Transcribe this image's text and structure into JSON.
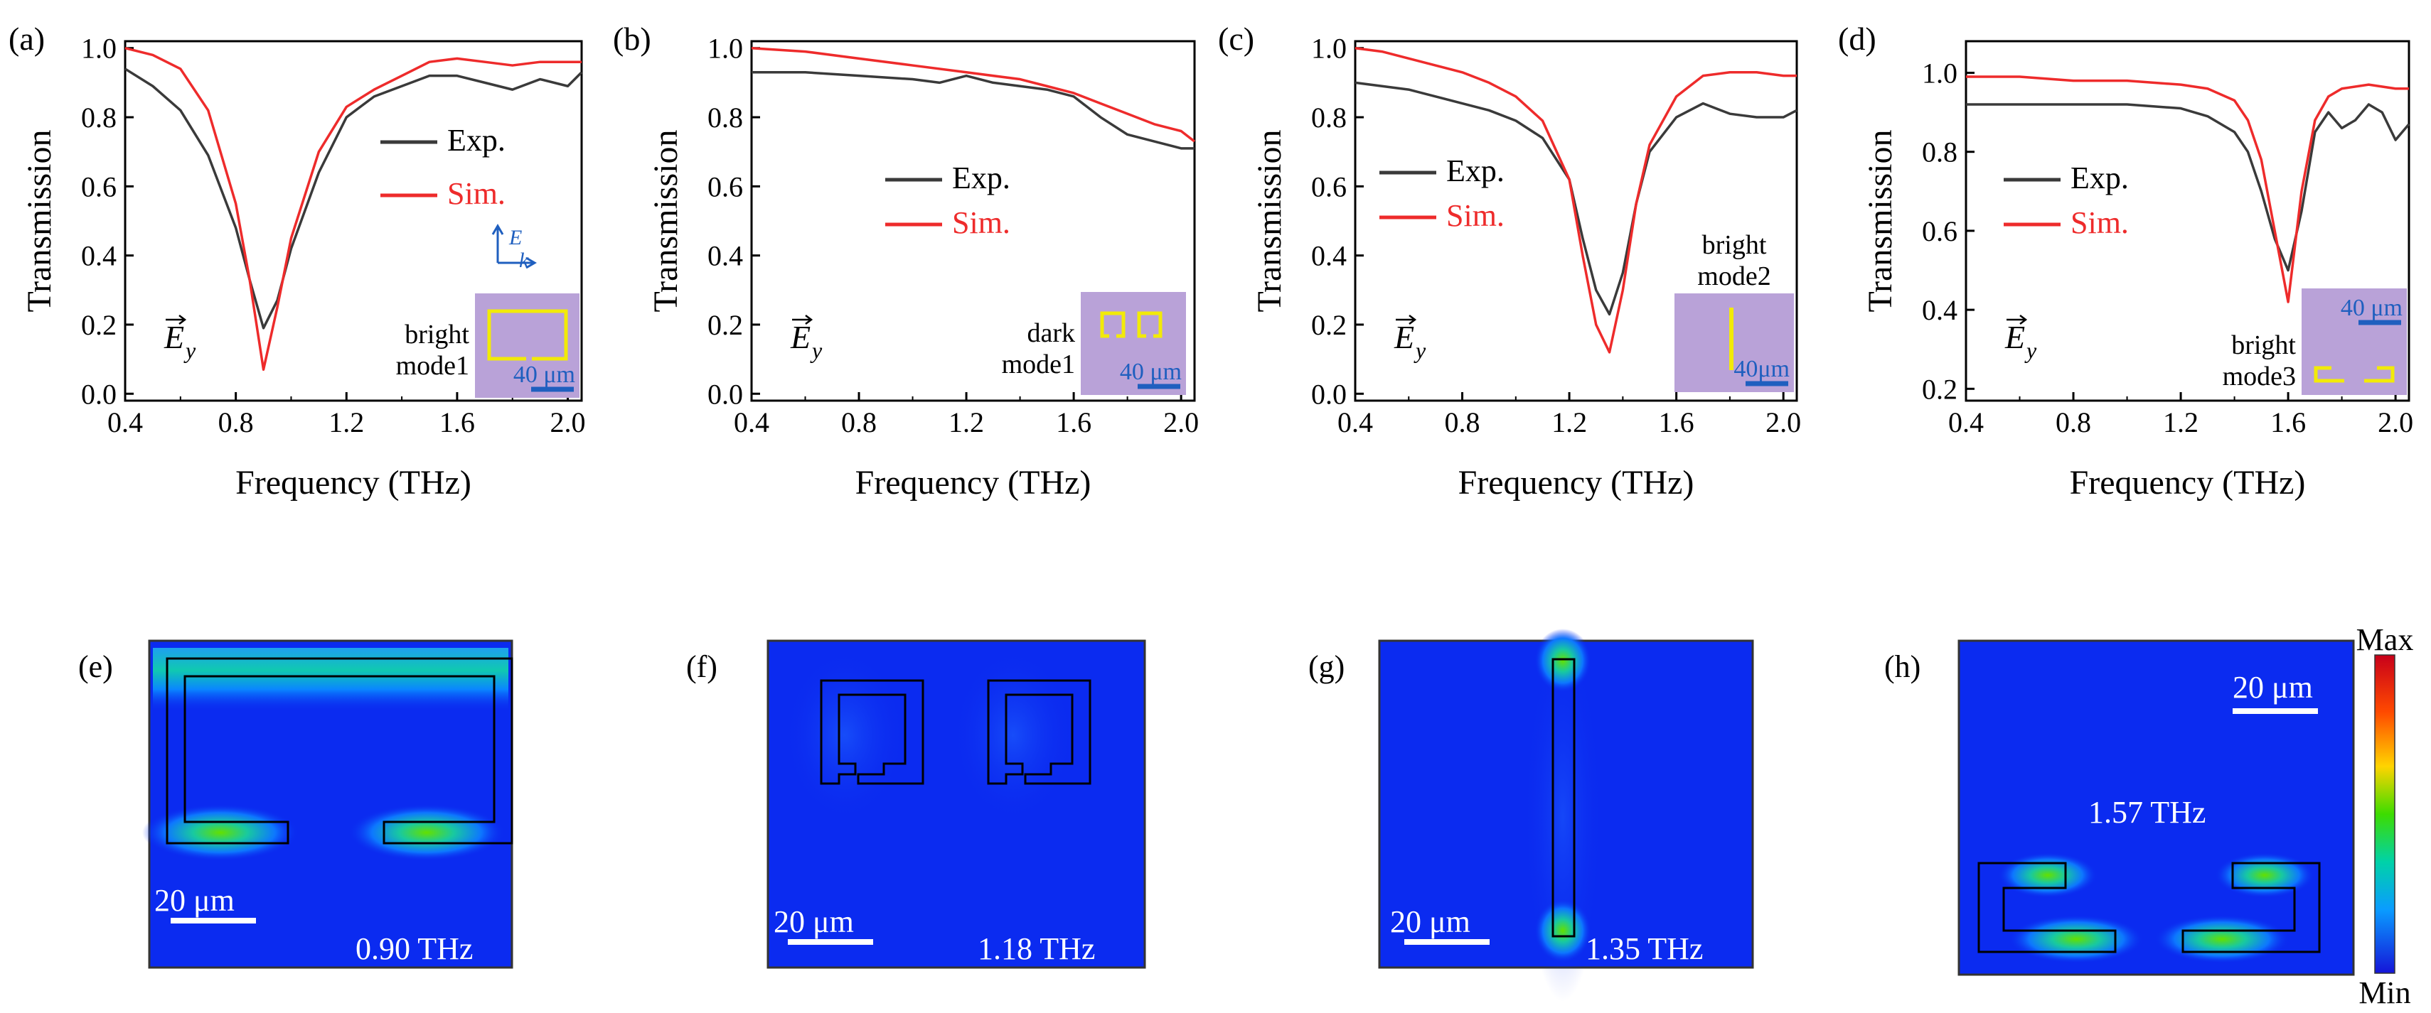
{
  "colors": {
    "exp": "#3a3a3a",
    "sim": "#ee2b2b",
    "inset_bg": "#b9a2d8",
    "inset_shape": "#f2ea08",
    "scale_blue": "#1f5fbf",
    "field_bg": "#0b2bf0"
  },
  "chart_data": [
    {
      "type": "line",
      "panel": "(a)",
      "xlabel": "Frequency (THz)",
      "ylabel": "Transmission",
      "xlim": [
        0.4,
        2.05
      ],
      "ylim": [
        -0.02,
        1.02
      ],
      "xticks": [
        "0.4",
        "0.8",
        "1.2",
        "1.6",
        "2.0"
      ],
      "yticks": [
        "0.0",
        "0.2",
        "0.4",
        "0.6",
        "0.8",
        "1.0"
      ],
      "ytick_values": [
        0.0,
        0.2,
        0.4,
        0.6,
        0.8,
        1.0
      ],
      "legend": [
        "Exp.",
        "Sim."
      ],
      "field_label": "E",
      "field_sub": "y",
      "inset_label": [
        "bright",
        "mode1"
      ],
      "inset_scale": "40 μm",
      "inset_shape": "bright1",
      "has_axes_icon": true,
      "series": [
        {
          "name": "Exp.",
          "x": [
            0.4,
            0.5,
            0.6,
            0.7,
            0.8,
            0.85,
            0.9,
            0.95,
            1.0,
            1.1,
            1.2,
            1.3,
            1.4,
            1.5,
            1.6,
            1.7,
            1.8,
            1.9,
            2.0,
            2.05
          ],
          "values": [
            0.94,
            0.89,
            0.82,
            0.69,
            0.48,
            0.33,
            0.19,
            0.27,
            0.42,
            0.64,
            0.8,
            0.86,
            0.89,
            0.92,
            0.92,
            0.9,
            0.88,
            0.91,
            0.89,
            0.93
          ]
        },
        {
          "name": "Sim.",
          "x": [
            0.4,
            0.5,
            0.6,
            0.7,
            0.8,
            0.85,
            0.9,
            0.95,
            1.0,
            1.1,
            1.2,
            1.3,
            1.4,
            1.5,
            1.6,
            1.7,
            1.8,
            1.9,
            2.0,
            2.05
          ],
          "values": [
            1.0,
            0.98,
            0.94,
            0.82,
            0.55,
            0.33,
            0.07,
            0.25,
            0.45,
            0.7,
            0.83,
            0.88,
            0.92,
            0.96,
            0.97,
            0.96,
            0.95,
            0.96,
            0.96,
            0.96
          ]
        }
      ]
    },
    {
      "type": "line",
      "panel": "(b)",
      "xlabel": "Frequency (THz)",
      "ylabel": "Transmission",
      "xlim": [
        0.4,
        2.05
      ],
      "ylim": [
        -0.02,
        1.02
      ],
      "xticks": [
        "0.4",
        "0.8",
        "1.2",
        "1.6",
        "2.0"
      ],
      "yticks": [
        "0.0",
        "0.2",
        "0.4",
        "0.6",
        "0.8",
        "1.0"
      ],
      "ytick_values": [
        0.0,
        0.2,
        0.4,
        0.6,
        0.8,
        1.0
      ],
      "legend": [
        "Exp.",
        "Sim."
      ],
      "field_label": "E",
      "field_sub": "y",
      "inset_label": [
        "dark",
        "mode1"
      ],
      "inset_scale": "40 μm",
      "inset_shape": "dark1",
      "has_axes_icon": false,
      "series": [
        {
          "name": "Exp.",
          "x": [
            0.4,
            0.6,
            0.8,
            1.0,
            1.1,
            1.2,
            1.3,
            1.4,
            1.5,
            1.6,
            1.7,
            1.8,
            1.9,
            2.0,
            2.05
          ],
          "values": [
            0.93,
            0.93,
            0.92,
            0.91,
            0.9,
            0.92,
            0.9,
            0.89,
            0.88,
            0.86,
            0.8,
            0.75,
            0.73,
            0.71,
            0.71
          ]
        },
        {
          "name": "Sim.",
          "x": [
            0.4,
            0.6,
            0.8,
            1.0,
            1.2,
            1.4,
            1.5,
            1.6,
            1.7,
            1.8,
            1.9,
            2.0,
            2.05
          ],
          "values": [
            1.0,
            0.99,
            0.97,
            0.95,
            0.93,
            0.91,
            0.89,
            0.87,
            0.84,
            0.81,
            0.78,
            0.76,
            0.73
          ]
        }
      ]
    },
    {
      "type": "line",
      "panel": "(c)",
      "xlabel": "Frequency (THz)",
      "ylabel": "Transmission",
      "xlim": [
        0.4,
        2.05
      ],
      "ylim": [
        -0.02,
        1.02
      ],
      "xticks": [
        "0.4",
        "0.8",
        "1.2",
        "1.6",
        "2.0"
      ],
      "yticks": [
        "0.0",
        "0.2",
        "0.4",
        "0.6",
        "0.8",
        "1.0"
      ],
      "ytick_values": [
        0.0,
        0.2,
        0.4,
        0.6,
        0.8,
        1.0
      ],
      "legend": [
        "Exp.",
        "Sim."
      ],
      "field_label": "E",
      "field_sub": "y",
      "inset_label": [
        "bright",
        "mode2"
      ],
      "inset_scale": "40μm",
      "inset_shape": "bright2",
      "has_axes_icon": false,
      "series": [
        {
          "name": "Exp.",
          "x": [
            0.4,
            0.5,
            0.6,
            0.7,
            0.8,
            0.9,
            1.0,
            1.1,
            1.2,
            1.25,
            1.3,
            1.35,
            1.4,
            1.45,
            1.5,
            1.6,
            1.7,
            1.8,
            1.9,
            2.0,
            2.05
          ],
          "values": [
            0.9,
            0.89,
            0.88,
            0.86,
            0.84,
            0.82,
            0.79,
            0.74,
            0.62,
            0.45,
            0.3,
            0.23,
            0.35,
            0.55,
            0.7,
            0.8,
            0.84,
            0.81,
            0.8,
            0.8,
            0.82
          ]
        },
        {
          "name": "Sim.",
          "x": [
            0.4,
            0.5,
            0.6,
            0.7,
            0.8,
            0.9,
            1.0,
            1.1,
            1.2,
            1.25,
            1.3,
            1.35,
            1.4,
            1.45,
            1.5,
            1.6,
            1.7,
            1.8,
            1.9,
            2.0,
            2.05
          ],
          "values": [
            1.0,
            0.99,
            0.97,
            0.95,
            0.93,
            0.9,
            0.86,
            0.79,
            0.62,
            0.4,
            0.2,
            0.12,
            0.3,
            0.55,
            0.72,
            0.86,
            0.92,
            0.93,
            0.93,
            0.92,
            0.92
          ]
        }
      ]
    },
    {
      "type": "line",
      "panel": "(d)",
      "xlabel": "Frequency (THz)",
      "ylabel": "Transmission",
      "xlim": [
        0.4,
        2.05
      ],
      "ylim": [
        0.17,
        1.08
      ],
      "xticks": [
        "0.4",
        "0.8",
        "1.2",
        "1.6",
        "2.0"
      ],
      "yticks": [
        "0.2",
        "0.4",
        "0.6",
        "0.8",
        "1.0"
      ],
      "ytick_values": [
        0.2,
        0.4,
        0.6,
        0.8,
        1.0
      ],
      "legend": [
        "Exp.",
        "Sim."
      ],
      "field_label": "E",
      "field_sub": "y",
      "inset_label": [
        "bright",
        "mode3"
      ],
      "inset_scale": "40 μm",
      "inset_shape": "bright3",
      "has_axes_icon": false,
      "series": [
        {
          "name": "Exp.",
          "x": [
            0.4,
            0.6,
            0.8,
            1.0,
            1.2,
            1.3,
            1.4,
            1.45,
            1.5,
            1.55,
            1.6,
            1.65,
            1.7,
            1.75,
            1.8,
            1.85,
            1.9,
            1.95,
            2.0,
            2.05
          ],
          "values": [
            0.92,
            0.92,
            0.92,
            0.92,
            0.91,
            0.89,
            0.85,
            0.8,
            0.7,
            0.58,
            0.5,
            0.65,
            0.85,
            0.9,
            0.86,
            0.88,
            0.92,
            0.9,
            0.83,
            0.87
          ]
        },
        {
          "name": "Sim.",
          "x": [
            0.4,
            0.6,
            0.8,
            1.0,
            1.2,
            1.3,
            1.4,
            1.45,
            1.5,
            1.55,
            1.6,
            1.65,
            1.7,
            1.75,
            1.8,
            1.9,
            2.0,
            2.05
          ],
          "values": [
            0.99,
            0.99,
            0.98,
            0.98,
            0.97,
            0.96,
            0.93,
            0.88,
            0.78,
            0.6,
            0.42,
            0.7,
            0.88,
            0.94,
            0.96,
            0.97,
            0.96,
            0.96
          ]
        }
      ]
    }
  ],
  "field_maps": [
    {
      "panel": "(e)",
      "frequency": "0.90 THz",
      "scale": "20 μm"
    },
    {
      "panel": "(f)",
      "frequency": "1.18 THz",
      "scale": "20 μm"
    },
    {
      "panel": "(g)",
      "frequency": "1.35 THz",
      "scale": "20 μm"
    },
    {
      "panel": "(h)",
      "frequency": "1.57 THz",
      "scale": "20 μm"
    }
  ],
  "colorbar": {
    "max_label": "Max",
    "min_label": "Min"
  }
}
